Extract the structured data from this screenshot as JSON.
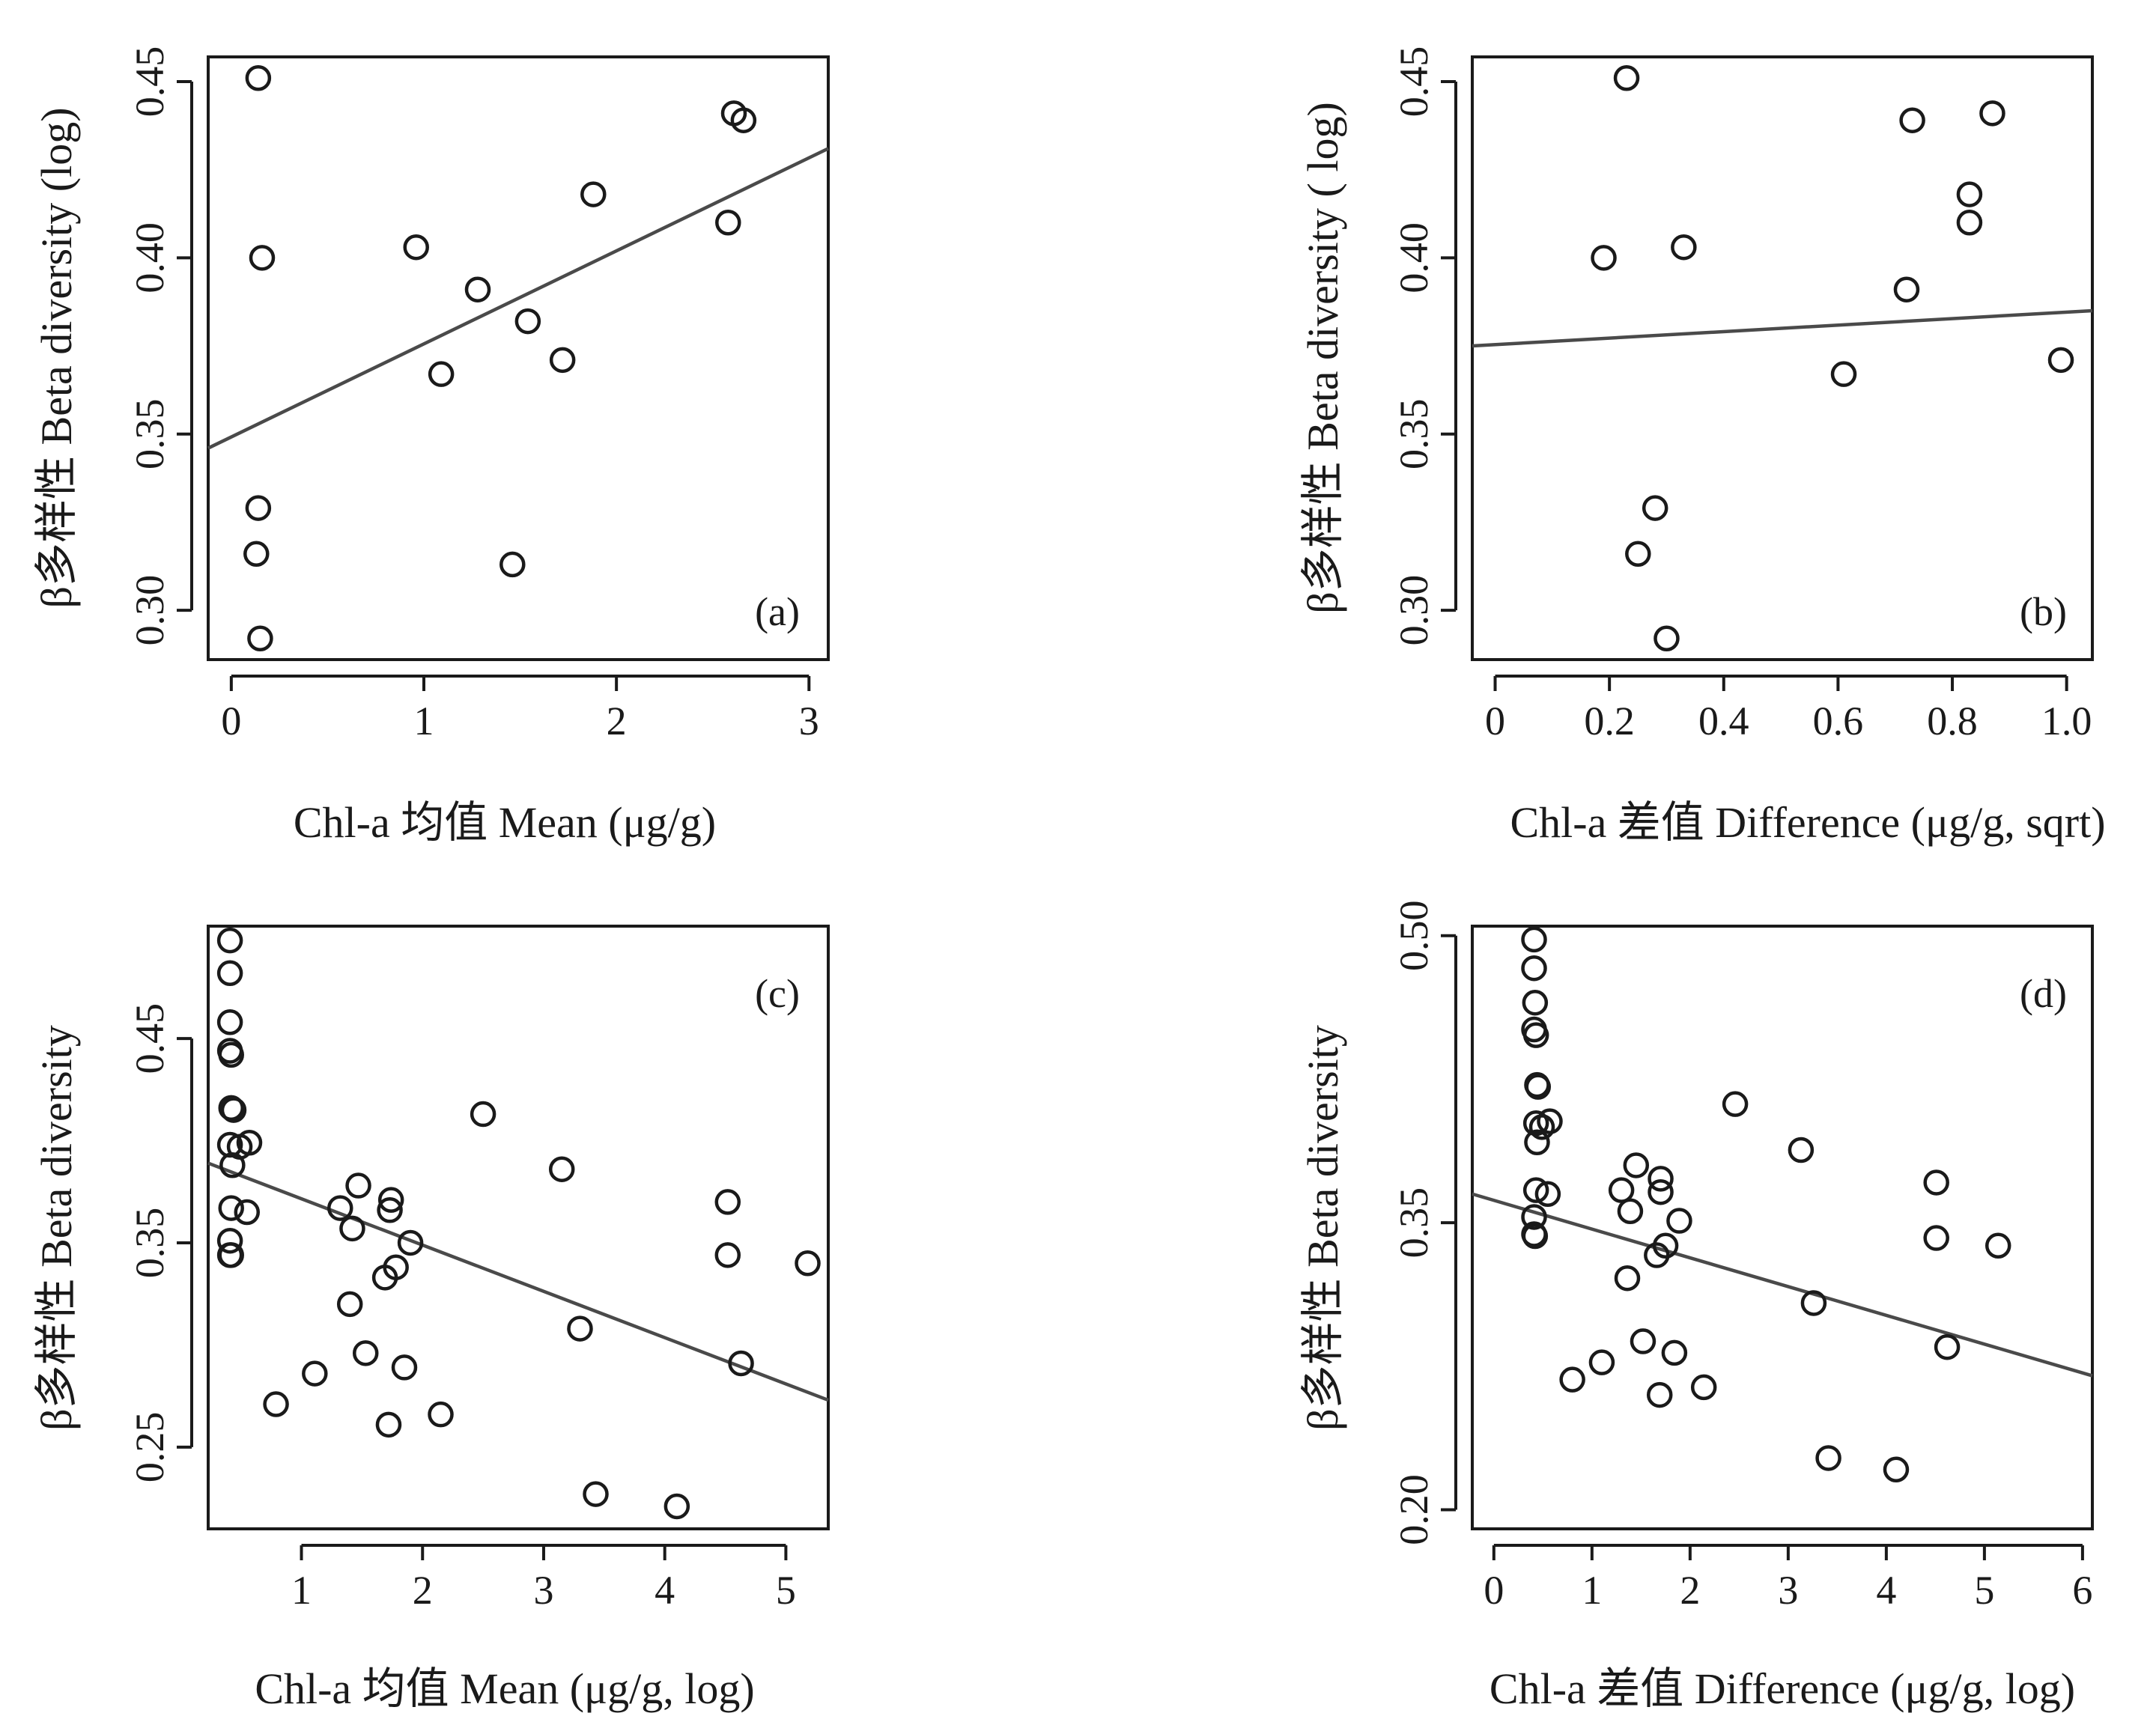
{
  "chart_data": [
    {
      "id": "a",
      "type": "scatter",
      "panel_label": "(a)",
      "xlabel": "Chl-a 均值 Mean (μg/g)",
      "ylabel": "β多样性 Beta diversity (log)",
      "xlim": [
        -0.12,
        3.1
      ],
      "ylim": [
        0.286,
        0.457
      ],
      "xticks": [
        0,
        1,
        2,
        3
      ],
      "xtick_labels": [
        "0",
        "1",
        "2",
        "3"
      ],
      "yticks": [
        0.3,
        0.35,
        0.4,
        0.45
      ],
      "ytick_labels": [
        "0.30",
        "0.35",
        "0.40",
        "0.45"
      ],
      "points": [
        {
          "x": 0.14,
          "y": 0.451
        },
        {
          "x": 0.16,
          "y": 0.4
        },
        {
          "x": 0.14,
          "y": 0.329
        },
        {
          "x": 0.13,
          "y": 0.316
        },
        {
          "x": 0.15,
          "y": 0.292
        },
        {
          "x": 0.96,
          "y": 0.403
        },
        {
          "x": 1.09,
          "y": 0.367
        },
        {
          "x": 1.28,
          "y": 0.391
        },
        {
          "x": 1.46,
          "y": 0.313
        },
        {
          "x": 1.54,
          "y": 0.382
        },
        {
          "x": 1.72,
          "y": 0.371
        },
        {
          "x": 1.88,
          "y": 0.418
        },
        {
          "x": 2.58,
          "y": 0.41
        },
        {
          "x": 2.61,
          "y": 0.441
        },
        {
          "x": 2.66,
          "y": 0.439
        }
      ],
      "fit_line": [
        {
          "x": -0.12,
          "y": 0.346
        },
        {
          "x": 3.1,
          "y": 0.431
        }
      ]
    },
    {
      "id": "b",
      "type": "scatter",
      "panel_label": "(b)",
      "xlabel": "Chl-a 差值 Difference (μg/g, sqrt)",
      "ylabel": "β多样性 Beta diversity ( log)",
      "xlim": [
        -0.04,
        1.045
      ],
      "ylim": [
        0.286,
        0.457
      ],
      "xticks": [
        0,
        0.2,
        0.4,
        0.6,
        0.8,
        1.0
      ],
      "xtick_labels": [
        "0",
        "0.2",
        "0.4",
        "0.6",
        "0.8",
        "1.0"
      ],
      "yticks": [
        0.3,
        0.35,
        0.4,
        0.45
      ],
      "ytick_labels": [
        "0.30",
        "0.35",
        "0.40",
        "0.45"
      ],
      "points": [
        {
          "x": 0.23,
          "y": 0.451
        },
        {
          "x": 0.19,
          "y": 0.4
        },
        {
          "x": 0.33,
          "y": 0.403
        },
        {
          "x": 0.28,
          "y": 0.329
        },
        {
          "x": 0.25,
          "y": 0.316
        },
        {
          "x": 0.3,
          "y": 0.292
        },
        {
          "x": 0.61,
          "y": 0.367
        },
        {
          "x": 0.72,
          "y": 0.391
        },
        {
          "x": 0.73,
          "y": 0.439
        },
        {
          "x": 0.83,
          "y": 0.418
        },
        {
          "x": 0.83,
          "y": 0.41
        },
        {
          "x": 0.87,
          "y": 0.441
        },
        {
          "x": 0.99,
          "y": 0.371
        }
      ],
      "fit_line": [
        {
          "x": -0.04,
          "y": 0.375
        },
        {
          "x": 1.045,
          "y": 0.385
        }
      ]
    },
    {
      "id": "c",
      "type": "scatter",
      "panel_label": "(c)",
      "xlabel": "Chl-a 均值 Mean (μg/g, log)",
      "ylabel": "β多样性 Beta diversity",
      "xlim": [
        0.23,
        5.35
      ],
      "ylim": [
        0.21,
        0.505
      ],
      "xticks": [
        1,
        2,
        3,
        4,
        5
      ],
      "xtick_labels": [
        "1",
        "2",
        "3",
        "4",
        "5"
      ],
      "yticks": [
        0.25,
        0.35,
        0.45
      ],
      "ytick_labels": [
        "0.25",
        "0.35",
        "0.45"
      ],
      "points": [
        {
          "x": 0.41,
          "y": 0.498
        },
        {
          "x": 0.41,
          "y": 0.482
        },
        {
          "x": 0.41,
          "y": 0.458
        },
        {
          "x": 0.41,
          "y": 0.444
        },
        {
          "x": 0.42,
          "y": 0.442
        },
        {
          "x": 0.42,
          "y": 0.416
        },
        {
          "x": 0.44,
          "y": 0.415
        },
        {
          "x": 0.41,
          "y": 0.398
        },
        {
          "x": 0.43,
          "y": 0.388
        },
        {
          "x": 0.49,
          "y": 0.397
        },
        {
          "x": 0.57,
          "y": 0.399
        },
        {
          "x": 0.42,
          "y": 0.367
        },
        {
          "x": 0.55,
          "y": 0.365
        },
        {
          "x": 0.41,
          "y": 0.351
        },
        {
          "x": 0.41,
          "y": 0.344
        },
        {
          "x": 0.42,
          "y": 0.344
        },
        {
          "x": 0.79,
          "y": 0.271
        },
        {
          "x": 1.11,
          "y": 0.286
        },
        {
          "x": 1.32,
          "y": 0.367
        },
        {
          "x": 1.4,
          "y": 0.32
        },
        {
          "x": 1.42,
          "y": 0.357
        },
        {
          "x": 1.47,
          "y": 0.378
        },
        {
          "x": 1.53,
          "y": 0.296
        },
        {
          "x": 1.69,
          "y": 0.333
        },
        {
          "x": 1.72,
          "y": 0.261
        },
        {
          "x": 1.73,
          "y": 0.366
        },
        {
          "x": 1.74,
          "y": 0.371
        },
        {
          "x": 1.78,
          "y": 0.338
        },
        {
          "x": 1.85,
          "y": 0.289
        },
        {
          "x": 1.9,
          "y": 0.35
        },
        {
          "x": 2.15,
          "y": 0.266
        },
        {
          "x": 2.5,
          "y": 0.413
        },
        {
          "x": 3.15,
          "y": 0.386
        },
        {
          "x": 3.3,
          "y": 0.308
        },
        {
          "x": 3.43,
          "y": 0.227
        },
        {
          "x": 4.1,
          "y": 0.221
        },
        {
          "x": 4.52,
          "y": 0.37
        },
        {
          "x": 4.52,
          "y": 0.344
        },
        {
          "x": 4.63,
          "y": 0.291
        },
        {
          "x": 5.18,
          "y": 0.34
        }
      ],
      "fit_line": [
        {
          "x": 0.23,
          "y": 0.389
        },
        {
          "x": 5.35,
          "y": 0.273
        }
      ]
    },
    {
      "id": "d",
      "type": "scatter",
      "panel_label": "(d)",
      "xlabel": "Chl-a 差值 Difference (μg/g, log)",
      "ylabel": "β多样性 Beta diversity",
      "xlim": [
        -0.22,
        6.1
      ],
      "ylim": [
        0.19,
        0.505
      ],
      "xticks": [
        0,
        1,
        2,
        3,
        4,
        5,
        6
      ],
      "xtick_labels": [
        "0",
        "1",
        "2",
        "3",
        "4",
        "5",
        "6"
      ],
      "yticks": [
        0.2,
        0.35,
        0.5
      ],
      "ytick_labels": [
        "0.20",
        "0.35",
        "0.50"
      ],
      "points": [
        {
          "x": 0.41,
          "y": 0.498
        },
        {
          "x": 0.41,
          "y": 0.483
        },
        {
          "x": 0.42,
          "y": 0.465
        },
        {
          "x": 0.41,
          "y": 0.451
        },
        {
          "x": 0.43,
          "y": 0.448
        },
        {
          "x": 0.44,
          "y": 0.422
        },
        {
          "x": 0.45,
          "y": 0.421
        },
        {
          "x": 0.43,
          "y": 0.402
        },
        {
          "x": 0.44,
          "y": 0.392
        },
        {
          "x": 0.49,
          "y": 0.4
        },
        {
          "x": 0.57,
          "y": 0.403
        },
        {
          "x": 0.43,
          "y": 0.367
        },
        {
          "x": 0.55,
          "y": 0.365
        },
        {
          "x": 0.41,
          "y": 0.353
        },
        {
          "x": 0.41,
          "y": 0.344
        },
        {
          "x": 0.42,
          "y": 0.343
        },
        {
          "x": 0.8,
          "y": 0.268
        },
        {
          "x": 1.1,
          "y": 0.277
        },
        {
          "x": 1.3,
          "y": 0.367
        },
        {
          "x": 1.36,
          "y": 0.321
        },
        {
          "x": 1.39,
          "y": 0.356
        },
        {
          "x": 1.45,
          "y": 0.38
        },
        {
          "x": 1.52,
          "y": 0.288
        },
        {
          "x": 1.66,
          "y": 0.333
        },
        {
          "x": 1.69,
          "y": 0.26
        },
        {
          "x": 1.7,
          "y": 0.366
        },
        {
          "x": 1.7,
          "y": 0.373
        },
        {
          "x": 1.75,
          "y": 0.338
        },
        {
          "x": 1.84,
          "y": 0.282
        },
        {
          "x": 1.89,
          "y": 0.351
        },
        {
          "x": 2.14,
          "y": 0.264
        },
        {
          "x": 2.46,
          "y": 0.412
        },
        {
          "x": 3.13,
          "y": 0.388
        },
        {
          "x": 3.26,
          "y": 0.308
        },
        {
          "x": 3.41,
          "y": 0.227
        },
        {
          "x": 4.1,
          "y": 0.221
        },
        {
          "x": 4.51,
          "y": 0.371
        },
        {
          "x": 4.51,
          "y": 0.342
        },
        {
          "x": 4.62,
          "y": 0.285
        },
        {
          "x": 5.14,
          "y": 0.338
        }
      ],
      "fit_line": [
        {
          "x": -0.22,
          "y": 0.365
        },
        {
          "x": 6.1,
          "y": 0.27
        }
      ]
    }
  ]
}
